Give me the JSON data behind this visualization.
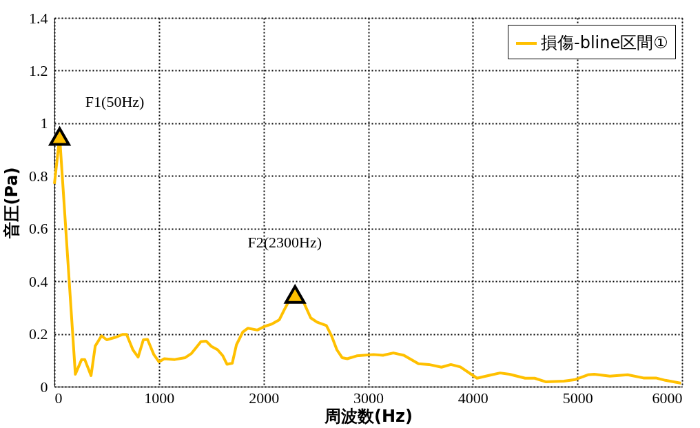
{
  "chart_data": {
    "type": "line",
    "xlabel": "周波数(Hz)",
    "ylabel": "音圧(Pa)",
    "xlim": [
      0,
      6000
    ],
    "xticks": [
      0,
      1000,
      2000,
      3000,
      4000,
      5000,
      6000
    ],
    "ylim": [
      0,
      1.4
    ],
    "yticks": [
      0,
      0.2,
      0.4,
      0.6,
      0.8,
      1,
      1.2,
      1.4
    ],
    "grid": true,
    "legend": "top right",
    "line_style": "solid",
    "series": [
      {
        "name": "損傷-bline区間①",
        "color": "#ffc000",
        "marker": "none",
        "x": [
          0,
          50,
          200,
          260,
          290,
          350,
          390,
          450,
          500,
          580,
          650,
          690,
          750,
          800,
          850,
          890,
          950,
          1000,
          1050,
          1150,
          1250,
          1310,
          1400,
          1450,
          1500,
          1560,
          1610,
          1650,
          1700,
          1740,
          1800,
          1850,
          1940,
          2010,
          2080,
          2150,
          2200,
          2250,
          2300,
          2380,
          2450,
          2510,
          2600,
          2650,
          2700,
          2750,
          2800,
          2890,
          3050,
          3140,
          3240,
          3340,
          3480,
          3580,
          3700,
          3790,
          3880,
          4040,
          4160,
          4260,
          4350,
          4500,
          4590,
          4700,
          4870,
          4980,
          5100,
          5160,
          5310,
          5480,
          5630,
          5750,
          5840,
          5990
        ],
        "values": [
          0.77,
          0.95,
          0.047,
          0.103,
          0.103,
          0.042,
          0.154,
          0.193,
          0.178,
          0.187,
          0.198,
          0.198,
          0.14,
          0.112,
          0.178,
          0.179,
          0.122,
          0.094,
          0.106,
          0.103,
          0.11,
          0.126,
          0.171,
          0.173,
          0.153,
          0.14,
          0.117,
          0.085,
          0.089,
          0.159,
          0.207,
          0.222,
          0.215,
          0.229,
          0.238,
          0.254,
          0.294,
          0.331,
          0.35,
          0.322,
          0.261,
          0.245,
          0.232,
          0.192,
          0.14,
          0.11,
          0.106,
          0.117,
          0.122,
          0.119,
          0.128,
          0.119,
          0.087,
          0.084,
          0.074,
          0.084,
          0.075,
          0.032,
          0.043,
          0.052,
          0.047,
          0.032,
          0.032,
          0.018,
          0.021,
          0.027,
          0.045,
          0.047,
          0.04,
          0.045,
          0.033,
          0.033,
          0.024,
          0.013
        ]
      },
      {
        "color": "#ffc000",
        "type": "scatter",
        "marker": "triangle",
        "x": [
          50,
          2300
        ],
        "values": [
          0.95,
          0.35
        ]
      }
    ],
    "annotations": [
      {
        "text": "F1(50Hz)",
        "x": 50,
        "y": 0.95
      },
      {
        "text": "F2(2300Hz)",
        "x": 2300,
        "y": 0.35
      }
    ]
  }
}
